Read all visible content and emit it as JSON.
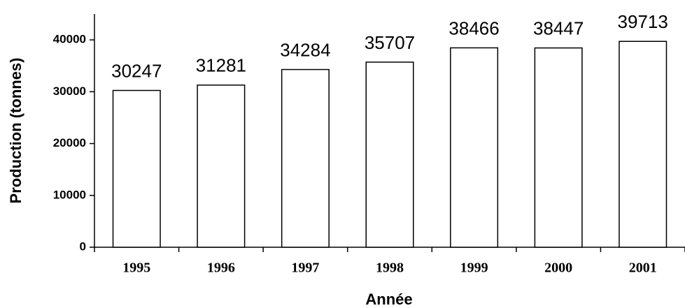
{
  "chart_data": {
    "type": "bar",
    "xlabel": "Année",
    "ylabel": "Production (tonnes)",
    "categories": [
      "1995",
      "1996",
      "1997",
      "1998",
      "1999",
      "2000",
      "2001"
    ],
    "values": [
      30247,
      31281,
      34284,
      35707,
      38466,
      38447,
      39713
    ],
    "color": "#ffffff",
    "ylim": [
      0,
      45000
    ],
    "yticks": [
      0,
      10000,
      20000,
      30000,
      40000
    ],
    "grid": false
  }
}
